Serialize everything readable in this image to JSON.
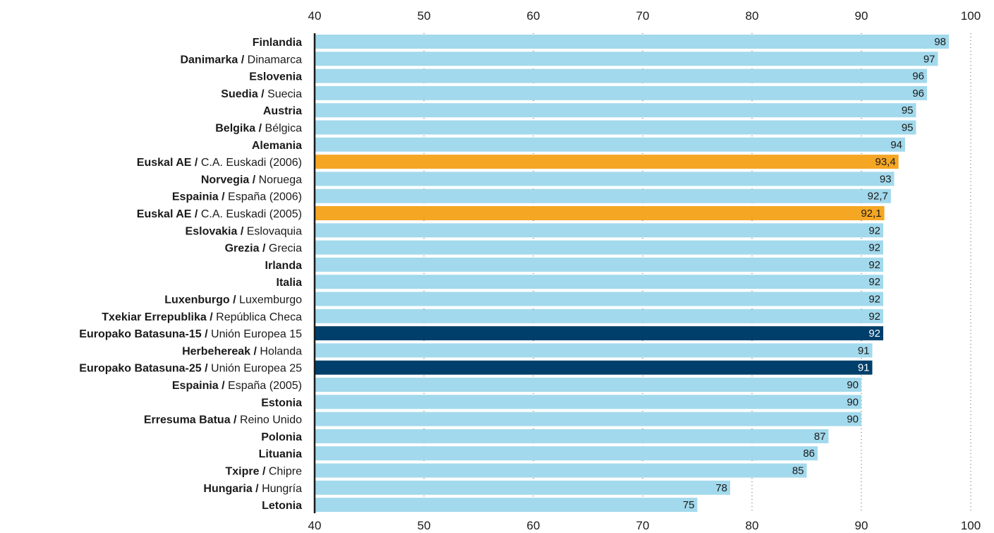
{
  "chart_data": {
    "type": "bar",
    "orientation": "horizontal",
    "title": "",
    "xlabel": "",
    "ylabel": "",
    "xlim": [
      40,
      100
    ],
    "ticks": [
      40,
      50,
      60,
      70,
      80,
      90,
      100
    ],
    "grid": "vertical dotted",
    "axis_position": "top and bottom",
    "colors": {
      "default": "#a2d9ec",
      "euskadi": "#f5a623",
      "eu": "#003f6b"
    },
    "bars": [
      {
        "eu": "Finlandia",
        "es": "",
        "value": 98,
        "label": "98",
        "group": "default"
      },
      {
        "eu": "Danimarka",
        "es": "Dinamarca",
        "value": 97,
        "label": "97",
        "group": "default"
      },
      {
        "eu": "Eslovenia",
        "es": "",
        "value": 96,
        "label": "96",
        "group": "default"
      },
      {
        "eu": "Suedia",
        "es": "Suecia",
        "value": 96,
        "label": "96",
        "group": "default"
      },
      {
        "eu": "Austria",
        "es": "",
        "value": 95,
        "label": "95",
        "group": "default"
      },
      {
        "eu": "Belgika",
        "es": "Bélgica",
        "value": 95,
        "label": "95",
        "group": "default"
      },
      {
        "eu": "Alemania",
        "es": "",
        "value": 94,
        "label": "94",
        "group": "default"
      },
      {
        "eu": "Euskal AE",
        "es": "C.A. Euskadi (2006)",
        "value": 93.4,
        "label": "93,4",
        "group": "euskadi"
      },
      {
        "eu": "Norvegia",
        "es": "Noruega",
        "value": 93,
        "label": "93",
        "group": "default"
      },
      {
        "eu": "Espainia",
        "es": "España (2006)",
        "value": 92.7,
        "label": "92,7",
        "group": "default"
      },
      {
        "eu": "Euskal AE",
        "es": "C.A. Euskadi (2005)",
        "value": 92.1,
        "label": "92,1",
        "group": "euskadi"
      },
      {
        "eu": "Eslovakia",
        "es": "Eslovaquia",
        "value": 92,
        "label": "92",
        "group": "default"
      },
      {
        "eu": "Grezia",
        "es": "Grecia",
        "value": 92,
        "label": "92",
        "group": "default"
      },
      {
        "eu": "Irlanda",
        "es": "",
        "value": 92,
        "label": "92",
        "group": "default"
      },
      {
        "eu": "Italia",
        "es": "",
        "value": 92,
        "label": "92",
        "group": "default"
      },
      {
        "eu": "Luxenburgo",
        "es": "Luxemburgo",
        "value": 92,
        "label": "92",
        "group": "default"
      },
      {
        "eu": "Txekiar Errepublika",
        "es": "República Checa",
        "value": 92,
        "label": "92",
        "group": "default"
      },
      {
        "eu": "Europako Batasuna-15",
        "es": "Unión Europea 15",
        "value": 92,
        "label": "92",
        "group": "eu"
      },
      {
        "eu": "Herbehereak",
        "es": "Holanda",
        "value": 91,
        "label": "91",
        "group": "default"
      },
      {
        "eu": "Europako Batasuna-25",
        "es": "Unión Europea 25",
        "value": 91,
        "label": "91",
        "group": "eu"
      },
      {
        "eu": "Espainia",
        "es": "España (2005)",
        "value": 90,
        "label": "90",
        "group": "default"
      },
      {
        "eu": "Estonia",
        "es": "",
        "value": 90,
        "label": "90",
        "group": "default"
      },
      {
        "eu": "Erresuma Batua",
        "es": "Reino Unido",
        "value": 90,
        "label": "90",
        "group": "default"
      },
      {
        "eu": "Polonia",
        "es": "",
        "value": 87,
        "label": "87",
        "group": "default"
      },
      {
        "eu": "Lituania",
        "es": "",
        "value": 86,
        "label": "86",
        "group": "default"
      },
      {
        "eu": "Txipre",
        "es": "Chipre",
        "value": 85,
        "label": "85",
        "group": "default"
      },
      {
        "eu": "Hungaria",
        "es": "Hungría",
        "value": 78,
        "label": "78",
        "group": "default"
      },
      {
        "eu": "Letonia",
        "es": "",
        "value": 75,
        "label": "75",
        "group": "default"
      }
    ]
  }
}
